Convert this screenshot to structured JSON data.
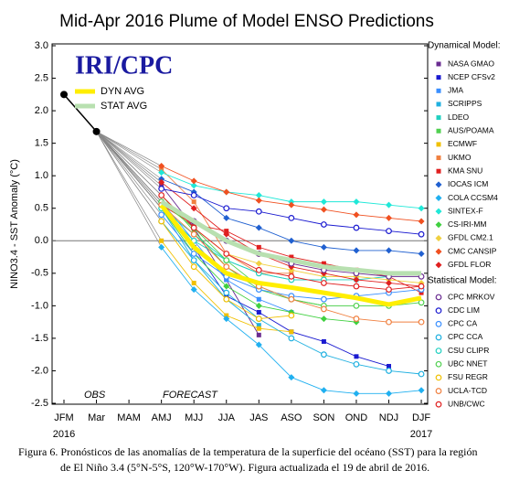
{
  "chart_data": {
    "type": "line",
    "title": "Mid-Apr 2016 Plume of Model ENSO Predictions",
    "y_label": "NINO3.4 - SST Anomaly (°C)",
    "categories": [
      "JFM",
      "Mar",
      "MAM",
      "AMJ",
      "MJJ",
      "JJA",
      "JAS",
      "ASO",
      "SON",
      "OND",
      "NDJ",
      "DJF"
    ],
    "years": [
      {
        "index": 0,
        "label": "2016"
      },
      {
        "index": 11,
        "label": "2017"
      }
    ],
    "ylim": [
      -2.5,
      3.0
    ],
    "yticks": [
      {
        "value": -2.5,
        "label": "-2.5"
      },
      {
        "value": -2,
        "label": "-2.0"
      },
      {
        "value": -1.5,
        "label": "-1.5"
      },
      {
        "value": -1,
        "label": "-1.0"
      },
      {
        "value": -0.5,
        "label": "-0.5"
      },
      {
        "value": 0,
        "label": "0.0"
      },
      {
        "value": 0.5,
        "label": "0.5"
      },
      {
        "value": 1,
        "label": "1.0"
      },
      {
        "value": 1.5,
        "label": "1.5"
      },
      {
        "value": 2,
        "label": "2.0"
      },
      {
        "value": 2.5,
        "label": "2.5"
      },
      {
        "value": 3,
        "label": "3.0"
      }
    ],
    "logo": "IRI/CPC",
    "annotations": [
      "OBS",
      "FORECAST"
    ],
    "dynamical_label": "Dynamical Model:",
    "statistical_label": "Statistical Model:",
    "caption": [
      "Figura 6. Pronósticos de las anomalías de la temperatura de la superficie del océano (SST) para la región",
      "de El Niño 3.4 (5°N-5°S, 120°W-170°W). Figura actualizada el 19 de abril de 2016."
    ],
    "observed": {
      "name": "OBS",
      "color": "#000000",
      "values": [
        2.25,
        1.68,
        null,
        null,
        null,
        null,
        null,
        null,
        null,
        null,
        null,
        null
      ]
    },
    "series": [
      {
        "name": "NASA GMAO",
        "group": "dynamical",
        "marker": "square",
        "color": "#6a2c91",
        "values": [
          null,
          null,
          null,
          0.85,
          0.2,
          -0.6,
          -1.45,
          null,
          null,
          null,
          null,
          null
        ]
      },
      {
        "name": "NCEP CFSv2",
        "group": "dynamical",
        "marker": "square",
        "color": "#1a1ad0",
        "values": [
          null,
          null,
          null,
          0.5,
          -0.1,
          -0.85,
          -1.1,
          -1.4,
          -1.55,
          -1.78,
          -1.93,
          null
        ]
      },
      {
        "name": "JMA",
        "group": "dynamical",
        "marker": "square",
        "color": "#3a8fff",
        "values": [
          null,
          null,
          null,
          0.6,
          0.0,
          -0.6,
          -0.9,
          -1.1,
          null,
          null,
          null,
          null
        ]
      },
      {
        "name": "SCRIPPS",
        "group": "dynamical",
        "marker": "square",
        "color": "#1fb0e0",
        "values": [
          null,
          null,
          null,
          0.5,
          -0.3,
          -0.9,
          -1.3,
          null,
          null,
          null,
          null,
          null
        ]
      },
      {
        "name": "LDEO",
        "group": "dynamical",
        "marker": "square",
        "color": "#20d0c0",
        "values": [
          null,
          null,
          null,
          0.5,
          0.1,
          -0.3,
          -0.5,
          -0.6,
          -0.6,
          -0.6,
          -0.55,
          null
        ]
      },
      {
        "name": "AUS/POAMA",
        "group": "dynamical",
        "marker": "square",
        "color": "#50d050",
        "values": [
          null,
          null,
          null,
          0.7,
          0.15,
          -0.4,
          -0.75,
          -0.9,
          -1.0,
          null,
          null,
          null
        ]
      },
      {
        "name": "ECMWF",
        "group": "dynamical",
        "marker": "square",
        "color": "#f0c000",
        "values": [
          null,
          null,
          null,
          0.0,
          -0.65,
          -1.15,
          -1.35,
          -1.4,
          null,
          null,
          null,
          null
        ]
      },
      {
        "name": "UKMO",
        "group": "dynamical",
        "marker": "square",
        "color": "#f08040",
        "values": [
          null,
          null,
          null,
          1.1,
          0.6,
          -0.2,
          -0.5,
          -0.5,
          null,
          null,
          null,
          null
        ]
      },
      {
        "name": "KMA SNU",
        "group": "dynamical",
        "marker": "square",
        "color": "#e02020",
        "values": [
          null,
          null,
          null,
          0.55,
          0.25,
          0.15,
          -0.1,
          -0.25,
          -0.35,
          -0.45,
          -0.55,
          -0.8
        ]
      },
      {
        "name": "IOCAS ICM",
        "group": "dynamical",
        "marker": "diamond",
        "color": "#2060d0",
        "values": [
          null,
          null,
          null,
          0.95,
          0.75,
          0.35,
          0.2,
          0.0,
          -0.1,
          -0.15,
          -0.15,
          -0.2
        ]
      },
      {
        "name": "COLA CCSM4",
        "group": "dynamical",
        "marker": "diamond",
        "color": "#20b0f0",
        "values": [
          null,
          null,
          null,
          -0.1,
          -0.75,
          -1.2,
          -1.6,
          -2.1,
          -2.3,
          -2.35,
          -2.35,
          -2.3
        ]
      },
      {
        "name": "SINTEX-F",
        "group": "dynamical",
        "marker": "diamond",
        "color": "#20e8d8",
        "values": [
          null,
          null,
          null,
          1.05,
          0.85,
          0.75,
          0.7,
          0.6,
          0.6,
          0.6,
          0.55,
          0.5
        ]
      },
      {
        "name": "CS-IRI-MM",
        "group": "dynamical",
        "marker": "diamond",
        "color": "#40d040",
        "values": [
          null,
          null,
          null,
          0.5,
          -0.2,
          -0.7,
          -1.0,
          -1.1,
          -1.2,
          -1.25,
          null,
          null
        ]
      },
      {
        "name": "GFDL CM2.1",
        "group": "dynamical",
        "marker": "diamond",
        "color": "#f0d040",
        "values": [
          null,
          null,
          null,
          0.6,
          0.2,
          -0.2,
          -0.35,
          -0.45,
          -0.55,
          -0.55,
          -0.6,
          -0.65
        ]
      },
      {
        "name": "CMC CANSIP",
        "group": "dynamical",
        "marker": "diamond",
        "color": "#f05020",
        "values": [
          null,
          null,
          null,
          1.15,
          0.92,
          0.75,
          0.62,
          0.55,
          0.48,
          0.4,
          0.35,
          0.3
        ]
      },
      {
        "name": "GFDL FLOR",
        "group": "dynamical",
        "marker": "diamond",
        "color": "#e02020",
        "values": [
          null,
          null,
          null,
          0.9,
          0.5,
          0.1,
          -0.2,
          -0.4,
          -0.5,
          -0.6,
          -0.65,
          -0.7
        ]
      },
      {
        "name": "CPC MRKOV",
        "group": "statistical",
        "marker": "circle",
        "color": "#6a2c91",
        "values": [
          null,
          null,
          null,
          0.6,
          0.3,
          0.0,
          -0.2,
          -0.35,
          -0.45,
          -0.5,
          -0.55,
          -0.55
        ]
      },
      {
        "name": "CDC LIM",
        "group": "statistical",
        "marker": "circle",
        "color": "#1a1ad0",
        "values": [
          null,
          null,
          null,
          0.8,
          0.7,
          0.5,
          0.45,
          0.35,
          0.25,
          0.2,
          0.15,
          0.1
        ]
      },
      {
        "name": "CPC CA",
        "group": "statistical",
        "marker": "circle",
        "color": "#3a8fff",
        "values": [
          null,
          null,
          null,
          0.4,
          -0.2,
          -0.55,
          -0.75,
          -0.85,
          -0.9,
          -0.85,
          -0.8,
          -0.75
        ]
      },
      {
        "name": "CPC CCA",
        "group": "statistical",
        "marker": "circle",
        "color": "#1fb0e0",
        "values": [
          null,
          null,
          null,
          0.3,
          -0.3,
          -0.8,
          -1.2,
          -1.5,
          -1.75,
          -1.9,
          -2.0,
          -2.05
        ]
      },
      {
        "name": "CSU CLIPR",
        "group": "statistical",
        "marker": "circle",
        "color": "#20d0c0",
        "values": [
          null,
          null,
          null,
          0.5,
          0.0,
          -0.3,
          -0.5,
          -0.6,
          -0.6,
          null,
          null,
          null
        ]
      },
      {
        "name": "UBC NNET",
        "group": "statistical",
        "marker": "circle",
        "color": "#50d050",
        "values": [
          null,
          null,
          null,
          0.6,
          0.2,
          -0.3,
          -0.7,
          -0.9,
          -1.0,
          -1.0,
          -1.0,
          -0.95
        ]
      },
      {
        "name": "FSU REGR",
        "group": "statistical",
        "marker": "circle",
        "color": "#f0c000",
        "values": [
          null,
          null,
          null,
          0.3,
          -0.4,
          -0.9,
          -1.2,
          -1.15,
          null,
          null,
          null,
          null
        ]
      },
      {
        "name": "UCLA-TCD",
        "group": "statistical",
        "marker": "circle",
        "color": "#f08040",
        "values": [
          null,
          null,
          null,
          0.55,
          0.1,
          -0.4,
          -0.7,
          -0.9,
          -1.05,
          -1.2,
          -1.25,
          -1.25
        ]
      },
      {
        "name": "UNB/CWC",
        "group": "statistical",
        "marker": "circle",
        "color": "#e02020",
        "values": [
          null,
          null,
          null,
          0.7,
          0.2,
          -0.2,
          -0.45,
          -0.55,
          -0.65,
          -0.7,
          -0.75,
          -0.7
        ]
      },
      {
        "name": "DYN AVG",
        "group": "average",
        "marker": "none",
        "color": "#ffee00",
        "values": [
          null,
          null,
          null,
          0.55,
          -0.1,
          -0.5,
          -0.65,
          -0.72,
          -0.8,
          -0.88,
          -0.98,
          -0.88
        ]
      },
      {
        "name": "STAT AVG",
        "group": "average",
        "marker": "none",
        "color": "#b8e0b0",
        "values": [
          null,
          null,
          null,
          0.6,
          0.3,
          0.0,
          -0.2,
          -0.3,
          -0.4,
          -0.45,
          -0.5,
          -0.5
        ]
      }
    ]
  }
}
